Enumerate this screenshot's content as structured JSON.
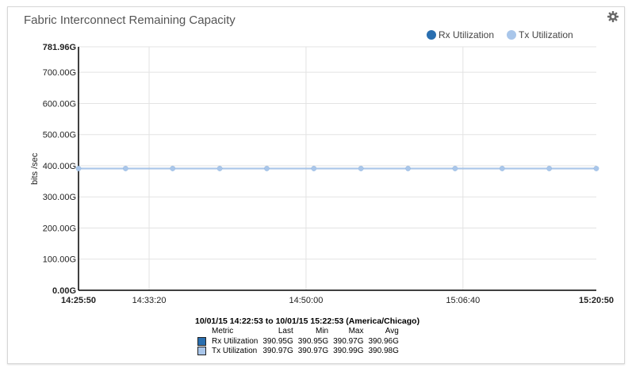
{
  "panel": {
    "title": "Fabric Interconnect Remaining Capacity",
    "settings_icon": "gear-icon"
  },
  "colors": {
    "rx": "#2a6fb0",
    "tx": "#a9c6ea",
    "grid": "#e3e3e3",
    "axis": "#000000"
  },
  "chart_data": {
    "type": "line",
    "title": "Fabric Interconnect Remaining Capacity",
    "ylabel": "bits /sec",
    "xlabel": "",
    "ylim": [
      0,
      781.96
    ],
    "y_unit": "G",
    "y_ticks": [
      "0.00G",
      "100.00G",
      "200.00G",
      "300.00G",
      "400.00G",
      "500.00G",
      "600.00G",
      "700.00G",
      "781.96G"
    ],
    "y_tick_values": [
      0,
      100,
      200,
      300,
      400,
      500,
      600,
      700,
      781.96
    ],
    "x_ticks": [
      "14:25:50",
      "14:33:20",
      "14:50:00",
      "15:06:40",
      "15:20:50"
    ],
    "x_tick_values": [
      "14:25:50",
      "14:33:20",
      "14:50:00",
      "15:06:40",
      "15:20:50"
    ],
    "xlim": [
      "14:25:50",
      "15:20:50"
    ],
    "grid": true,
    "legend_position": "top-right",
    "x": [
      "14:25:50",
      "14:30:50",
      "14:35:50",
      "14:40:50",
      "14:45:50",
      "14:50:50",
      "14:55:50",
      "15:00:50",
      "15:05:50",
      "15:10:50",
      "15:15:50",
      "15:20:50"
    ],
    "series": [
      {
        "name": "Rx Utilization",
        "values": [
          390.95,
          390.96,
          390.96,
          390.96,
          390.96,
          390.96,
          390.96,
          390.96,
          390.96,
          390.96,
          390.96,
          390.95
        ]
      },
      {
        "name": "Tx Utilization",
        "values": [
          390.98,
          390.98,
          390.98,
          390.98,
          390.98,
          390.98,
          390.98,
          390.98,
          390.98,
          390.98,
          390.98,
          390.97
        ]
      }
    ]
  },
  "summary": {
    "range": "10/01/15 14:22:53 to 10/01/15 15:22:53 (America/Chicago)",
    "headers": [
      "Metric",
      "Last",
      "Min",
      "Max",
      "Avg"
    ],
    "rows": [
      {
        "metric": "Rx Utilization",
        "last": "390.95G",
        "min": "390.95G",
        "max": "390.97G",
        "avg": "390.96G"
      },
      {
        "metric": "Tx Utilization",
        "last": "390.97G",
        "min": "390.97G",
        "max": "390.99G",
        "avg": "390.98G"
      }
    ]
  }
}
